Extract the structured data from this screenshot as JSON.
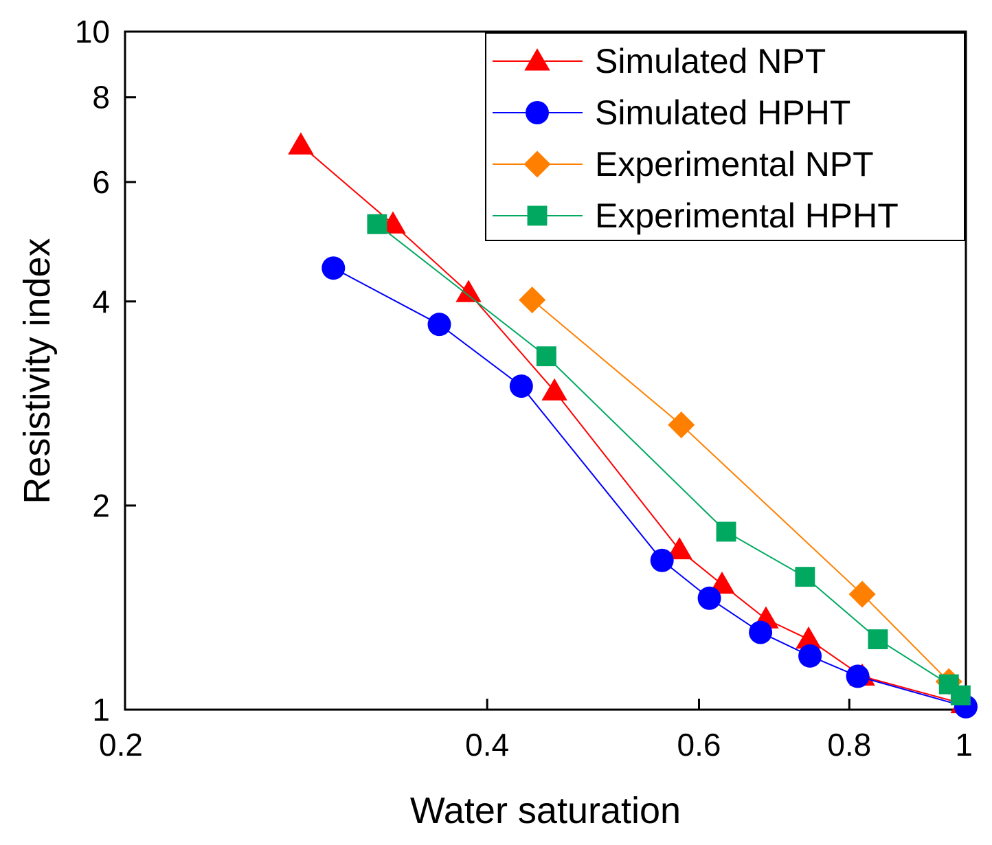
{
  "chart_data": {
    "type": "line",
    "title": "",
    "xlabel": "Water saturation",
    "ylabel": "Resistivity index",
    "xscale": "log",
    "yscale": "log",
    "xlim": [
      0.2,
      1
    ],
    "ylim": [
      1,
      10
    ],
    "x_ticks": [
      0.2,
      0.4,
      0.6,
      0.8,
      1
    ],
    "x_tick_labels": [
      "0.2",
      "0.4",
      "0.6",
      "0.8",
      "1"
    ],
    "y_ticks": [
      1,
      2,
      4,
      6,
      8,
      10
    ],
    "y_tick_labels": [
      "1",
      "2",
      "4",
      "6",
      "8",
      "10"
    ],
    "grid": false,
    "legend_position": "top-right",
    "series": [
      {
        "name": "Simulated NPT",
        "color": "#ff0000",
        "marker": "triangle",
        "x": [
          0.28,
          0.334,
          0.386,
          0.455,
          0.578,
          0.627,
          0.682,
          0.74,
          0.82,
          0.995
        ],
        "y": [
          6.8,
          5.2,
          4.12,
          2.95,
          1.72,
          1.53,
          1.36,
          1.27,
          1.12,
          1.02
        ]
      },
      {
        "name": "Simulated HPHT",
        "color": "#0000ff",
        "marker": "circle",
        "x": [
          0.298,
          0.365,
          0.427,
          0.559,
          0.612,
          0.675,
          0.742,
          0.813,
          1.0
        ],
        "y": [
          4.48,
          3.7,
          3.0,
          1.66,
          1.46,
          1.3,
          1.2,
          1.12,
          1.01
        ]
      },
      {
        "name": "Experimental NPT",
        "color": "#ff8000",
        "marker": "diamond",
        "x": [
          0.436,
          0.58,
          0.82,
          0.968
        ],
        "y": [
          4.02,
          2.63,
          1.48,
          1.1
        ]
      },
      {
        "name": "Experimental HPHT",
        "color": "#00a860",
        "marker": "square",
        "x": [
          0.324,
          0.448,
          0.632,
          0.735,
          0.845,
          0.968,
          0.99
        ],
        "y": [
          5.2,
          3.32,
          1.83,
          1.57,
          1.27,
          1.09,
          1.05
        ]
      }
    ]
  }
}
